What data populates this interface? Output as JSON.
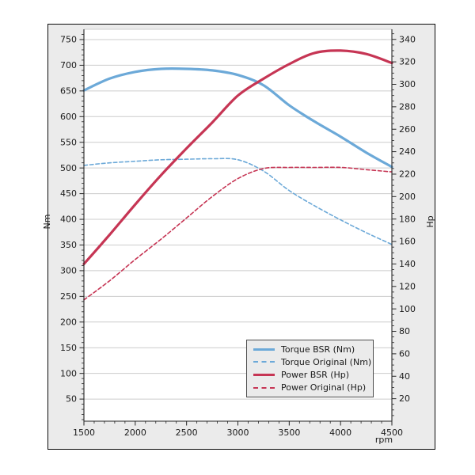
{
  "figure": {
    "background": "#ebebeb",
    "plot_background": "#ffffff",
    "border_color": "#0a0a0a",
    "grid_color": "#cccccc",
    "spine_color": "#262626",
    "top_spine_color": "#cccccc",
    "text_color": "#1a1a1a",
    "legend_background": "#ebebeb",
    "legend_border": "#4d4d4d"
  },
  "chart_data": {
    "type": "line",
    "title": "",
    "xlabel": "rpm",
    "ylabel_left": "Nm",
    "ylabel_right": "Hp",
    "grid": "horizontal",
    "legend_position": "lower-right",
    "x_range": [
      1500,
      4500
    ],
    "y_left_range": [
      7,
      770
    ],
    "y_right_range": [
      0,
      349
    ],
    "x_major_ticks": [
      1500,
      2000,
      2500,
      3000,
      3500,
      4000,
      4500
    ],
    "x_minor_step": 100,
    "y_left_ticks": [
      50,
      100,
      150,
      200,
      250,
      300,
      350,
      400,
      450,
      500,
      550,
      600,
      650,
      700,
      750
    ],
    "y_left_minor_step": 10,
    "y_right_ticks": [
      20,
      40,
      60,
      80,
      100,
      120,
      140,
      160,
      180,
      200,
      220,
      240,
      260,
      280,
      300,
      320,
      340
    ],
    "y_right_minor_step": 5,
    "x": [
      1500,
      1750,
      2000,
      2250,
      2500,
      2750,
      3000,
      3250,
      3500,
      3750,
      4000,
      4250,
      4500
    ],
    "series": [
      {
        "name": "Torque BSR (Nm)",
        "axis": "left",
        "style": "solid",
        "color": "#6ca9d8",
        "width": 3.2,
        "values": [
          651,
          674,
          687,
          693,
          693,
          690,
          681,
          661,
          622,
          590,
          561,
          530,
          502
        ]
      },
      {
        "name": "Torque Original (Nm)",
        "axis": "left",
        "style": "dashed",
        "color": "#6ca9d8",
        "width": 1.6,
        "values": [
          505,
          510,
          513,
          516,
          517,
          518,
          516,
          494,
          456,
          426,
          399,
          374,
          351
        ]
      },
      {
        "name": "Power BSR (Hp)",
        "axis": "right",
        "style": "solid",
        "color": "#c63554",
        "width": 3.2,
        "values": [
          140,
          166,
          193,
          219,
          243,
          266,
          290,
          305,
          318,
          328,
          330,
          327,
          319
        ]
      },
      {
        "name": "Power Original (Hp)",
        "axis": "right",
        "style": "dashed",
        "color": "#c63554",
        "width": 1.6,
        "values": [
          108,
          125,
          144,
          162,
          181,
          200,
          216,
          225,
          226,
          226,
          226,
          224,
          222
        ]
      }
    ]
  }
}
